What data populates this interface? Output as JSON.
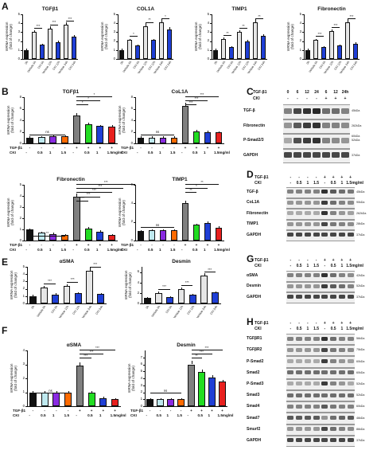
{
  "ticks_simple": [
    "0",
    "1",
    "2",
    "3",
    "4",
    "5"
  ],
  "ticks_b": [
    "0",
    "2",
    "4",
    "6",
    "8"
  ],
  "ticks_f": [
    "0",
    "1",
    "2",
    "3",
    "4",
    "5",
    "6",
    "7"
  ],
  "ylabel": "mRNA expression\n(fold of change)",
  "panels": {
    "A": "A",
    "B": "B",
    "C": "C",
    "D": "D",
    "E": "E",
    "F": "F",
    "G": "G",
    "H": "H"
  },
  "time_labels": [
    "0h",
    "Vehicle 6h",
    "CKI 6h",
    "Vehicle 12h",
    "CKI 12h",
    "Vehicle 24h",
    "CKI 24h"
  ],
  "row_labels": {
    "tgf": "TGF-β1",
    "cki": "CKI"
  },
  "dose_row": [
    "-",
    "0.5",
    "1",
    "1.5",
    "-",
    "0.5",
    "1",
    "1.5mg/ml"
  ],
  "tgf_row": [
    "-",
    "-",
    "-",
    "-",
    "+",
    "+",
    "+",
    "+"
  ],
  "colors": {
    "time": [
      "#111111",
      "#e6e6e6",
      "#1f3fd6",
      "#e6e6e6",
      "#1f3fd6",
      "#e6e6e6",
      "#1f3fd6"
    ],
    "dose": [
      "#111111",
      "#bfe9ef",
      "#8a2be2",
      "#ff6a00",
      "#808080",
      "#22dd22",
      "#1f3fd6",
      "#e8201e"
    ]
  },
  "chart_data": [
    {
      "id": "A1",
      "type": "bar",
      "title": "TGFβ1",
      "categories": [
        "0h",
        "Vehicle 6h",
        "CKI 6h",
        "Vehicle 12h",
        "CKI 12h",
        "Vehicle 24h",
        "CKI 24h"
      ],
      "values": [
        1.0,
        3.0,
        1.6,
        3.4,
        1.9,
        3.8,
        2.5
      ],
      "ylim": [
        0,
        5
      ],
      "sig": [
        "***",
        "***",
        "***"
      ]
    },
    {
      "id": "A2",
      "type": "bar",
      "title": "COL1A",
      "categories": [
        "0h",
        "Vehicle 6h",
        "CKI 6h",
        "Vehicle 12h",
        "CKI 12h",
        "Vehicle 24h",
        "CKI 24h"
      ],
      "values": [
        1.0,
        2.1,
        1.5,
        3.7,
        2.1,
        4.1,
        3.3
      ],
      "ylim": [
        0,
        5
      ],
      "sig": [
        "*",
        "**",
        "*"
      ]
    },
    {
      "id": "A3",
      "type": "bar",
      "title": "TIMP1",
      "categories": [
        "0h",
        "Vehicle 6h",
        "CKI 6h",
        "Vehicle 12h",
        "CKI 12h",
        "Vehicle 24h",
        "CKI 24h"
      ],
      "values": [
        1.0,
        2.2,
        1.3,
        3.0,
        2.0,
        4.1,
        2.6
      ],
      "ylim": [
        0,
        5
      ],
      "sig": [
        "**",
        "**",
        "**"
      ]
    },
    {
      "id": "A4",
      "type": "bar",
      "title": "Fibronectin",
      "categories": [
        "0h",
        "Vehicle 6h",
        "CKI 6h",
        "Vehicle 12h",
        "CKI 12h",
        "Vehicle 24h",
        "CKI 24h"
      ],
      "values": [
        1.0,
        2.1,
        1.3,
        3.1,
        1.5,
        4.1,
        1.7
      ],
      "ylim": [
        0,
        5
      ],
      "sig": [
        "***",
        "***",
        "***"
      ]
    },
    {
      "id": "B1",
      "type": "bar",
      "title": "TGFβ1",
      "values": [
        1.0,
        1.1,
        1.2,
        1.2,
        4.8,
        3.3,
        3.0,
        2.9
      ],
      "ylim": [
        0,
        8
      ],
      "sig": [
        "ns",
        "*",
        "*",
        "*"
      ]
    },
    {
      "id": "B2",
      "type": "bar",
      "title": "CoL1A",
      "values": [
        1.0,
        1.0,
        1.0,
        1.0,
        6.5,
        2.1,
        2.0,
        1.9
      ],
      "ylim": [
        0,
        8
      ],
      "sig": [
        "ns",
        "***",
        "***",
        "***"
      ]
    },
    {
      "id": "B3",
      "type": "bar",
      "title": "Fibronectin",
      "values": [
        1.0,
        0.7,
        0.6,
        0.5,
        3.9,
        1.1,
        0.8,
        0.5
      ],
      "ylim": [
        0,
        5
      ],
      "sig": [
        "**",
        "***",
        "***",
        "***",
        "***",
        "***"
      ]
    },
    {
      "id": "B4",
      "type": "bar",
      "title": "TIMP1",
      "values": [
        1.0,
        1.1,
        1.1,
        1.1,
        4.0,
        1.7,
        1.9,
        1.4
      ],
      "ylim": [
        0,
        6
      ],
      "sig": [
        "ns",
        "**",
        "*",
        "**"
      ]
    },
    {
      "id": "E1",
      "type": "bar",
      "title": "αSMA",
      "categories": [
        "0h",
        "Vehicle 6h",
        "CKI 6h",
        "Vehicle 12h",
        "CKI 12h",
        "Vehicle 24h",
        "CKI 24h"
      ],
      "values": [
        1.0,
        2.2,
        1.2,
        2.4,
        1.4,
        4.5,
        1.3
      ],
      "ylim": [
        0,
        5
      ],
      "sig": [
        "***",
        "***",
        "***"
      ]
    },
    {
      "id": "E2",
      "type": "bar",
      "title": "Desmin",
      "categories": [
        "0h",
        "Vehicle 6h",
        "CKI 6h",
        "Vehicle 12h",
        "CKI 12h",
        "Vehicle 24h",
        "CKI 24h"
      ],
      "values": [
        1.0,
        2.0,
        1.2,
        2.8,
        1.6,
        5.3,
        2.1
      ],
      "ylim": [
        0,
        7
      ],
      "sig": [
        "***",
        "***",
        "***"
      ]
    },
    {
      "id": "F1",
      "type": "bar",
      "title": "αSMA",
      "values": [
        1.0,
        1.0,
        1.0,
        1.0,
        2.9,
        1.0,
        0.6,
        0.5
      ],
      "ylim": [
        0,
        4
      ],
      "sig": [
        "ns",
        "***",
        "***",
        "***"
      ]
    },
    {
      "id": "F2",
      "type": "bar",
      "title": "Desmin",
      "values": [
        1.0,
        1.0,
        1.0,
        1.0,
        6.0,
        4.9,
        4.1,
        3.5
      ],
      "ylim": [
        0,
        8
      ],
      "sig": [
        "ns",
        "**",
        "***",
        "***"
      ]
    }
  ],
  "blots": {
    "C": {
      "tgf_times": [
        "0",
        "6",
        "12",
        "24",
        "6",
        "12",
        "24h"
      ],
      "cki_row": [
        "-",
        "-",
        "-",
        "-",
        "+",
        "+",
        "+"
      ],
      "rows": [
        {
          "label": "TGF-β",
          "kda": "45kDa"
        },
        {
          "label": "Fibronectin",
          "kda": "262kDa"
        },
        {
          "label": "P-Smad2/3",
          "kda": "60kDa\n52kDa"
        },
        {
          "label": "GAPDH",
          "kda": "37kDa"
        }
      ]
    },
    "D": {
      "rows": [
        {
          "label": "TGF-β",
          "kda": "45kDa"
        },
        {
          "label": "CoL1A",
          "kda": "90kDa"
        },
        {
          "label": "Fibronectin",
          "kda": "262kDa"
        },
        {
          "label": "TIMP1",
          "kda": "28kDa"
        },
        {
          "label": "GAPDH",
          "kda": "37kDa"
        }
      ]
    },
    "G": {
      "rows": [
        {
          "label": "αSMA",
          "kda": "42kDa"
        },
        {
          "label": "Desmin",
          "kda": "52kDa"
        },
        {
          "label": "GAPDH",
          "kda": "37kDa"
        }
      ]
    },
    "H": {
      "rows": [
        {
          "label": "TGFβR1",
          "kda": "56kDa"
        },
        {
          "label": "TGFβR2",
          "kda": "75kDa"
        },
        {
          "label": "P-Smad2",
          "kda": "60kDa"
        },
        {
          "label": "Smad2",
          "kda": "60kDa"
        },
        {
          "label": "P-Smad3",
          "kda": "52kDa"
        },
        {
          "label": "Smad3",
          "kda": "52kDa"
        },
        {
          "label": "Smad4",
          "kda": "60kDa"
        },
        {
          "label": "Smad7",
          "kda": "46kDa"
        },
        {
          "label": "Smurf2",
          "kda": "86kDa"
        },
        {
          "label": "GAPDH",
          "kda": "37kDa"
        }
      ]
    },
    "dose_hdr": {
      "tgf": "TGF-β1",
      "cki": "CKI",
      "tgf_row": [
        "-",
        "-",
        "-",
        "-",
        "+",
        "+",
        "+",
        "+"
      ],
      "cki_row": [
        "-",
        "0.5",
        "1",
        "1.5",
        "-",
        "0.5",
        "1",
        "1.5mg/ml"
      ]
    }
  }
}
